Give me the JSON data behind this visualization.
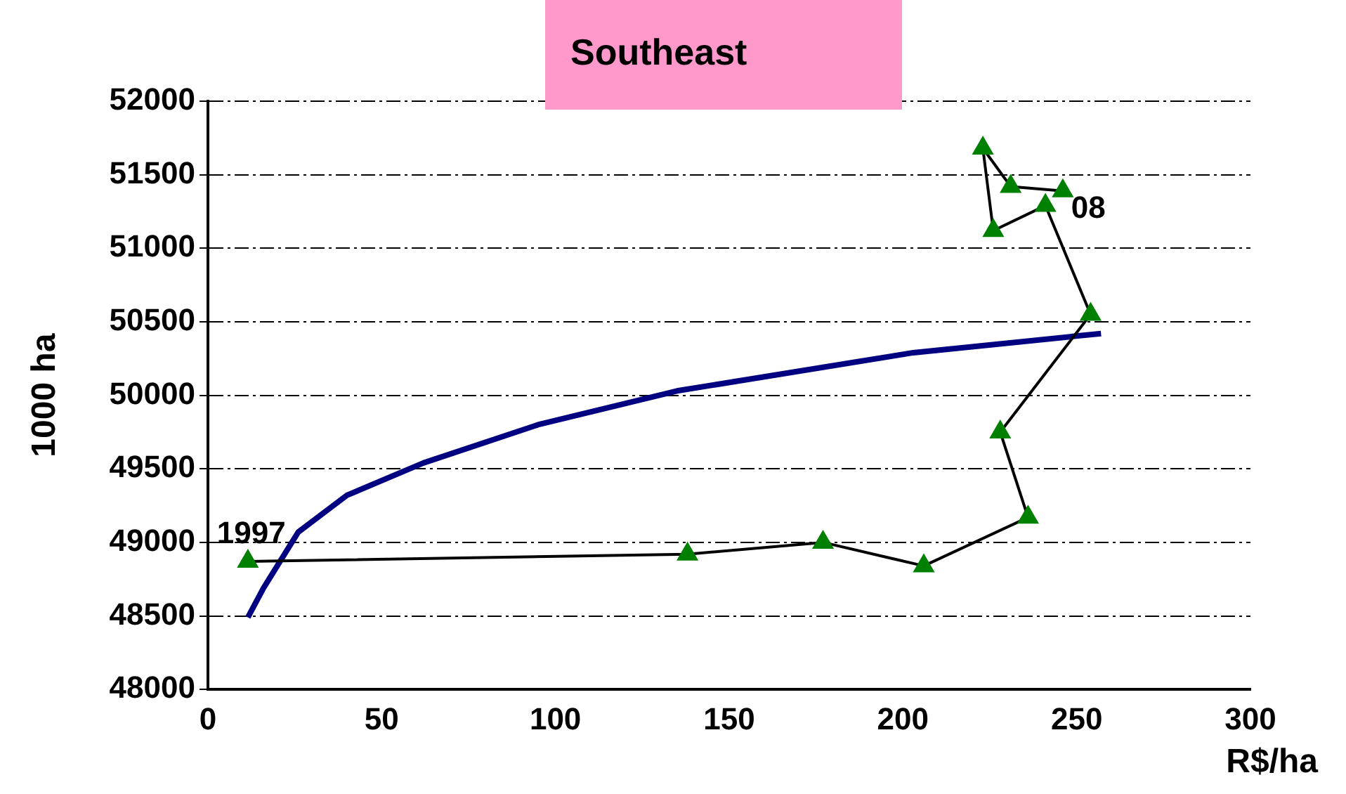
{
  "chart_data": {
    "type": "line",
    "title": "Southeast",
    "xlabel": "R$/ha",
    "ylabel": "1000 ha",
    "xlim": [
      0,
      300
    ],
    "xticks": [
      0,
      50,
      100,
      150,
      200,
      250,
      300
    ],
    "ylim": [
      48000,
      52000
    ],
    "yticks": [
      48000,
      48500,
      49000,
      49500,
      50000,
      50500,
      51000,
      51500,
      52000
    ],
    "grid": "y",
    "legend": false,
    "marker": "triangle",
    "series": [
      {
        "color": "#008000",
        "x": [
          11.5,
          138,
          177,
          206,
          236,
          228,
          254,
          241,
          226,
          223,
          231,
          246
        ],
        "values": [
          48870,
          48920,
          49000,
          48840,
          49170,
          49750,
          50550,
          51290,
          51120,
          51680,
          51420,
          51390
        ]
      },
      {
        "type": "line",
        "marker": "none",
        "color": "#000080",
        "x": [
          11.5,
          16,
          26,
          40,
          62,
          95,
          135,
          203,
          257
        ],
        "values": [
          48490,
          48690,
          49070,
          49320,
          49540,
          49800,
          50030,
          50290,
          50420
        ]
      }
    ],
    "annotations": [
      {
        "text": "1997",
        "x": 11.5,
        "y": 48870
      },
      {
        "text": "08",
        "x": 246,
        "y": 51390
      }
    ]
  }
}
